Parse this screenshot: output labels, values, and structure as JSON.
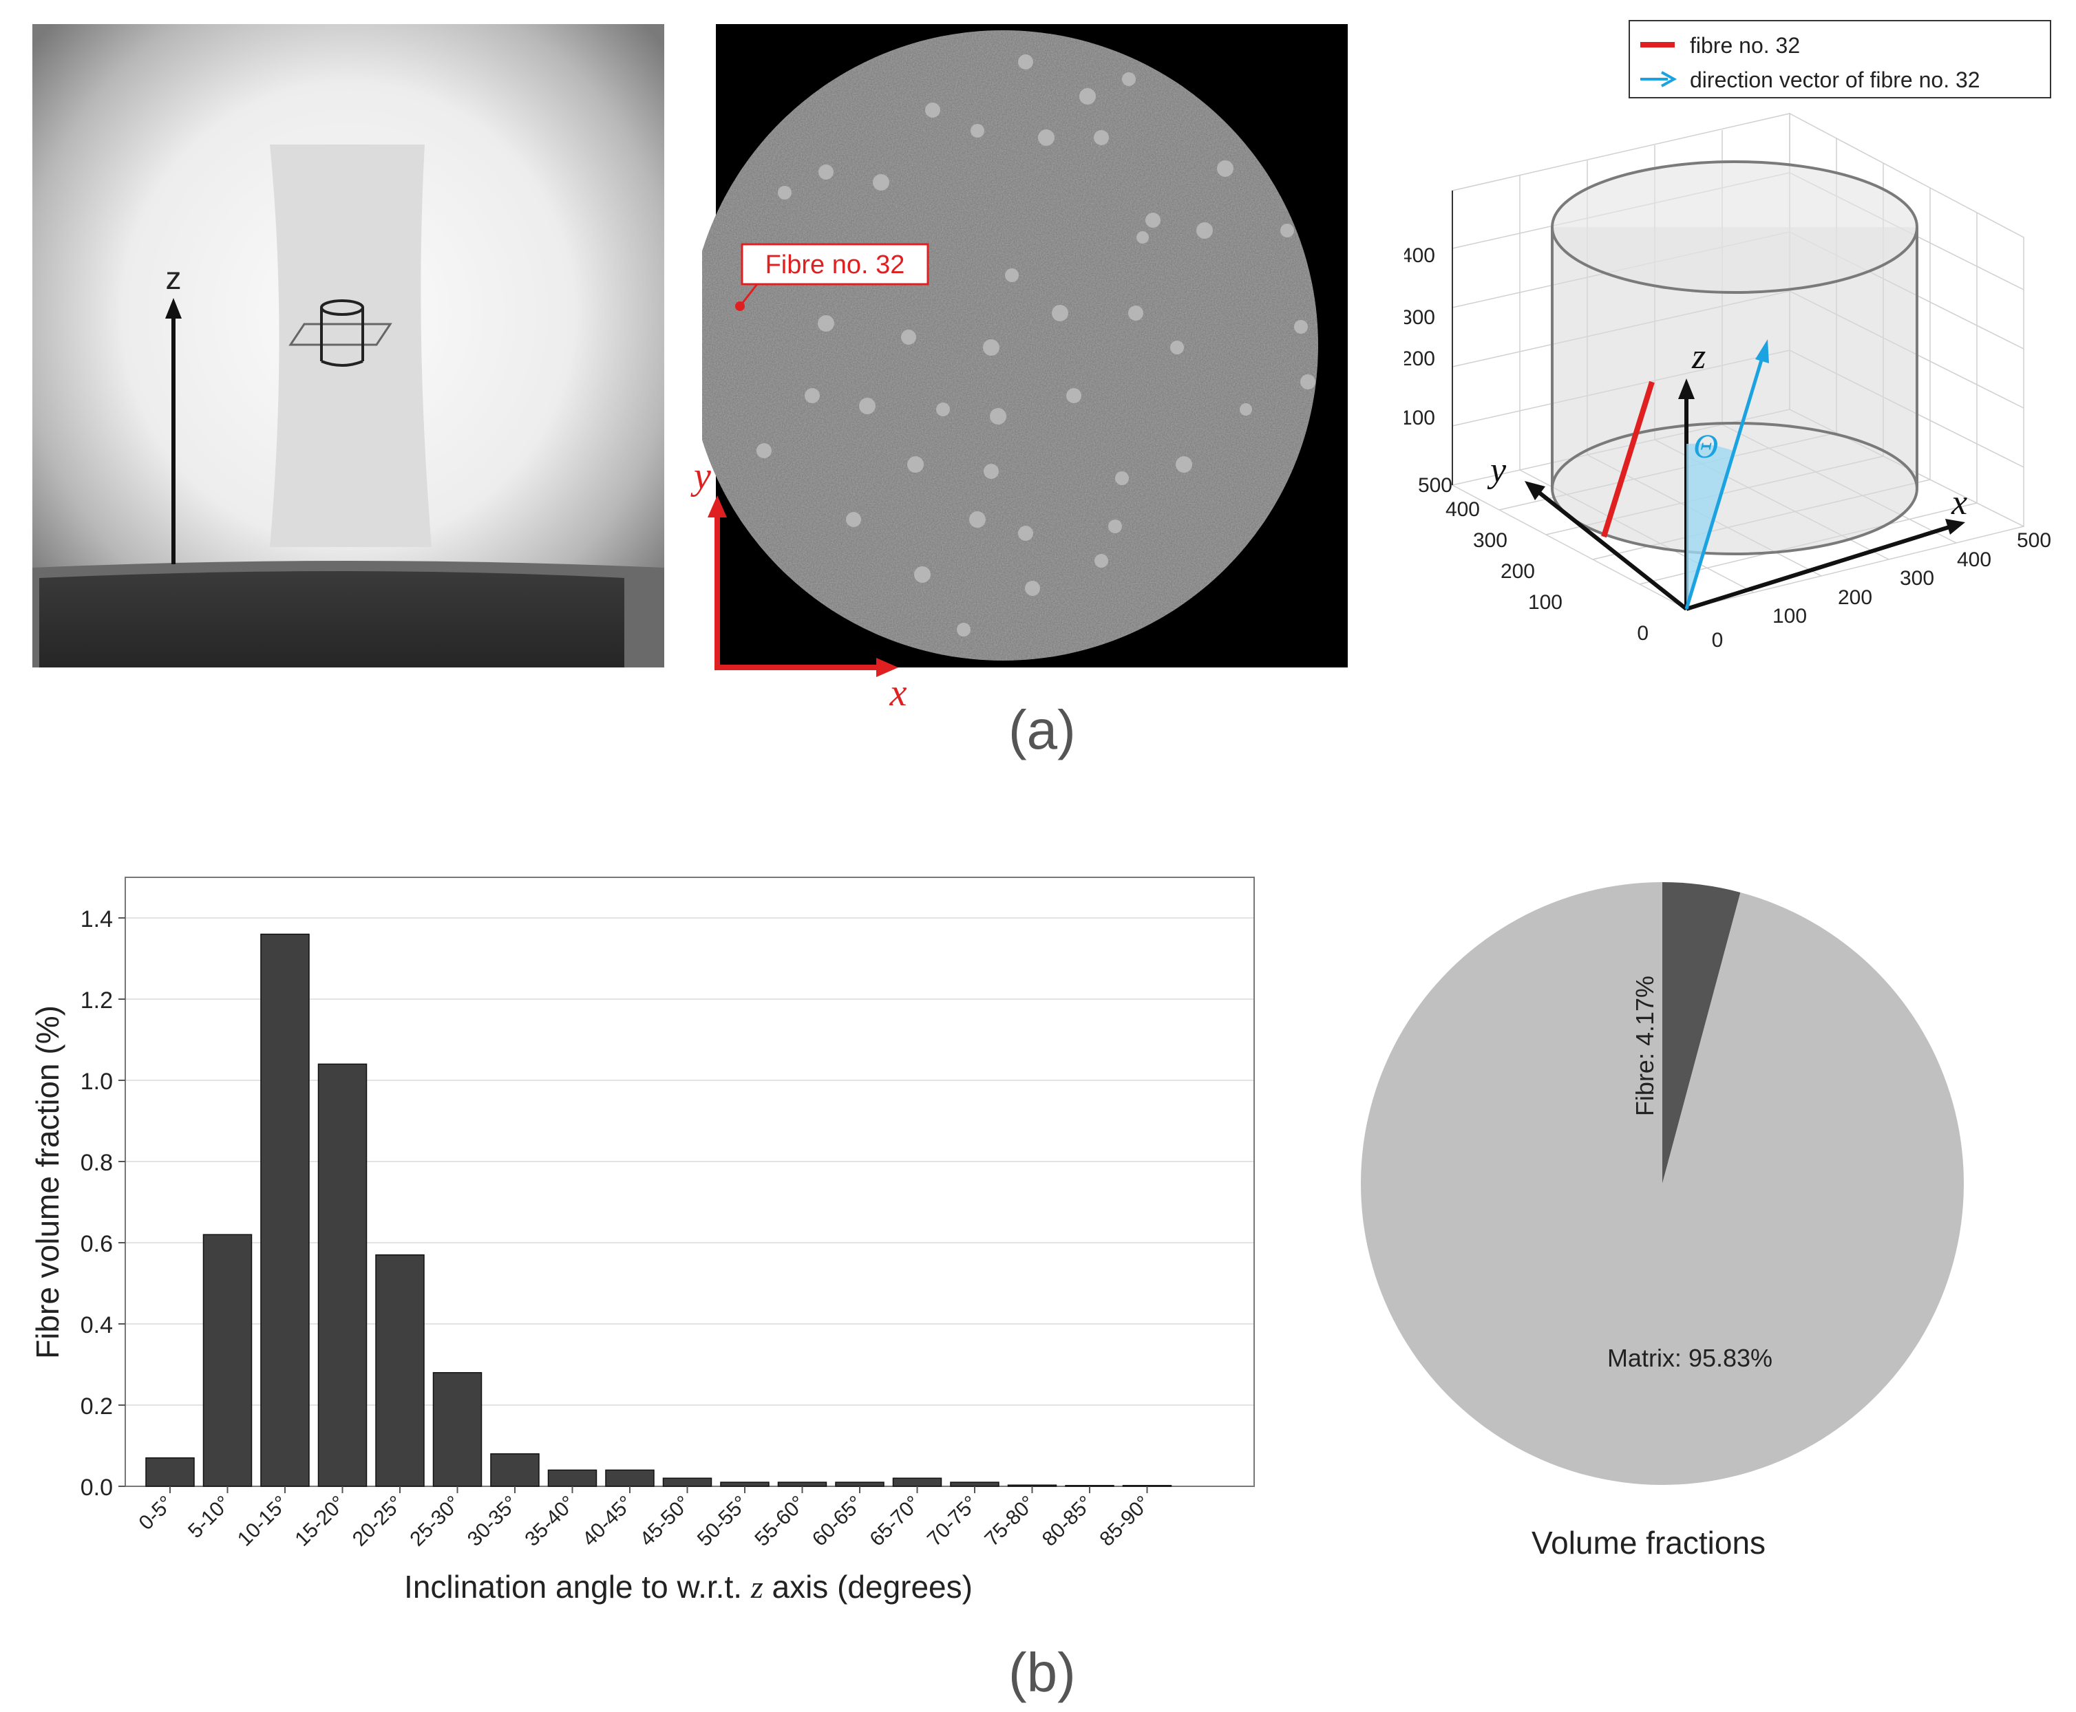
{
  "panel_a": {
    "label": "(a)",
    "xray": {
      "z_label": "z"
    },
    "slice": {
      "callout": "Fibre no. 32",
      "x_axis": "x",
      "y_axis": "y"
    },
    "plot3d": {
      "legend": [
        {
          "label": "fibre no. 32",
          "color": "#e02020"
        },
        {
          "label": "direction vector of fibre no. 32",
          "color": "#1aa3e0"
        }
      ],
      "z_ticks": [
        "100",
        "200",
        "300",
        "400"
      ],
      "y_ticks": [
        "0",
        "100",
        "200",
        "300",
        "400",
        "500"
      ],
      "x_ticks": [
        "0",
        "100",
        "200",
        "300",
        "400",
        "500"
      ],
      "axis_x": "x",
      "axis_y": "y",
      "axis_z": "z",
      "theta": "Θ"
    }
  },
  "panel_b": {
    "label": "(b)"
  },
  "chart_data": [
    {
      "type": "bar",
      "categories": [
        "0-5°",
        "5-10°",
        "10-15°",
        "15-20°",
        "20-25°",
        "25-30°",
        "30-35°",
        "35-40°",
        "40-45°",
        "45-50°",
        "50-55°",
        "55-60°",
        "60-65°",
        "65-70°",
        "70-75°",
        "75-80°",
        "80-85°",
        "85-90°"
      ],
      "values": [
        0.07,
        0.62,
        1.36,
        1.04,
        0.57,
        0.28,
        0.08,
        0.04,
        0.04,
        0.02,
        0.01,
        0.01,
        0.01,
        0.02,
        0.01,
        0.003,
        0.002,
        0.002
      ],
      "xlabel_pre": "Inclination angle to w.r.t. ",
      "xlabel_var": "z",
      "xlabel_post": " axis (degrees)",
      "ylabel": "Fibre volume fraction (%)",
      "yticks": [
        "0.0",
        "0.2",
        "0.4",
        "0.6",
        "0.8",
        "1.0",
        "1.2",
        "1.4"
      ],
      "ylim": [
        0,
        1.5
      ],
      "bar_color": "#404040",
      "grid": true
    },
    {
      "type": "pie",
      "title": "Volume fractions",
      "slices": [
        {
          "label": "Fibre: 4.17%",
          "value": 4.17,
          "color": "#555555"
        },
        {
          "label": "Matrix: 95.83%",
          "value": 95.83,
          "color": "#c0c0c0"
        }
      ]
    }
  ]
}
